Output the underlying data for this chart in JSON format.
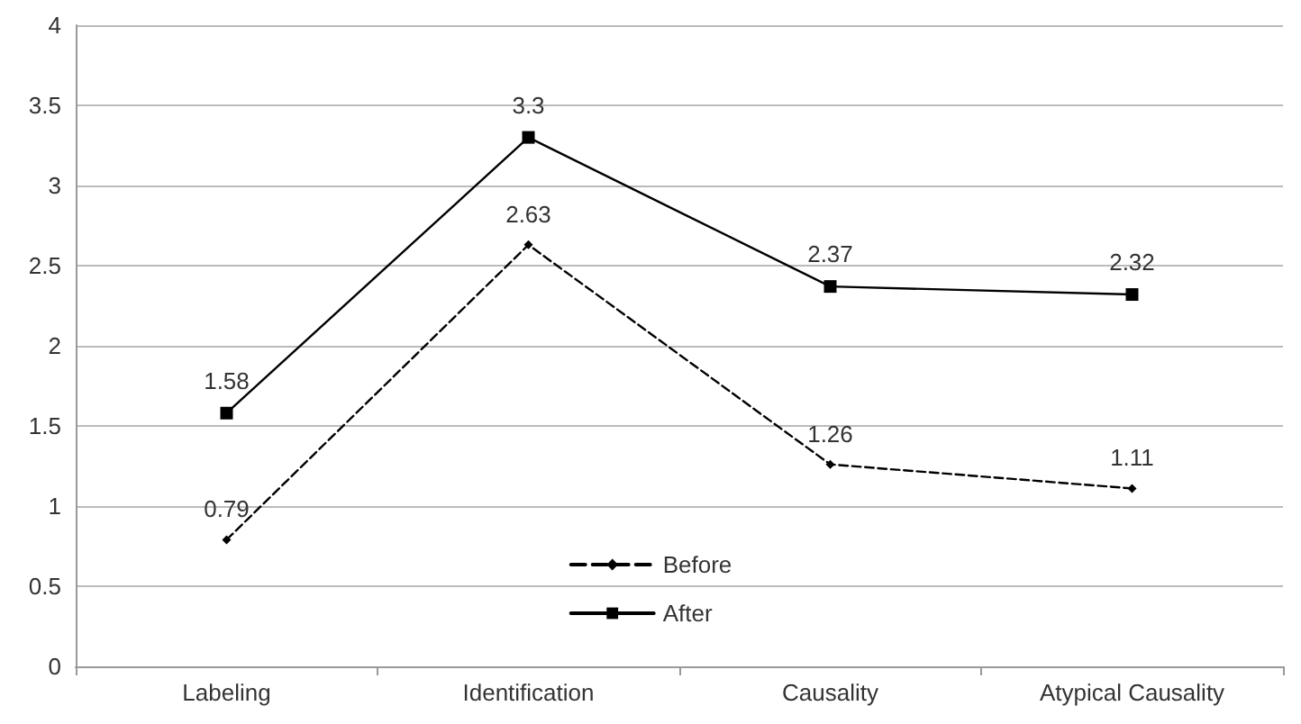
{
  "chart_data": {
    "type": "line",
    "categories": [
      "Labeling",
      "Identification",
      "Causality",
      "Atypical Causality"
    ],
    "series": [
      {
        "name": "Before",
        "color": "#000000",
        "values": [
          0.79,
          2.63,
          1.26,
          1.11
        ],
        "line_style": "dashed",
        "marker": "diamond"
      },
      {
        "name": "After",
        "color": "#000000",
        "values": [
          1.58,
          3.3,
          2.37,
          2.32
        ],
        "line_style": "solid",
        "marker": "square"
      }
    ],
    "ylim": [
      0,
      4
    ],
    "yticks": [
      0,
      0.5,
      1,
      1.5,
      2,
      2.5,
      3,
      3.5,
      4
    ],
    "grid": "y",
    "legend": "bottom",
    "data_labels": true
  }
}
